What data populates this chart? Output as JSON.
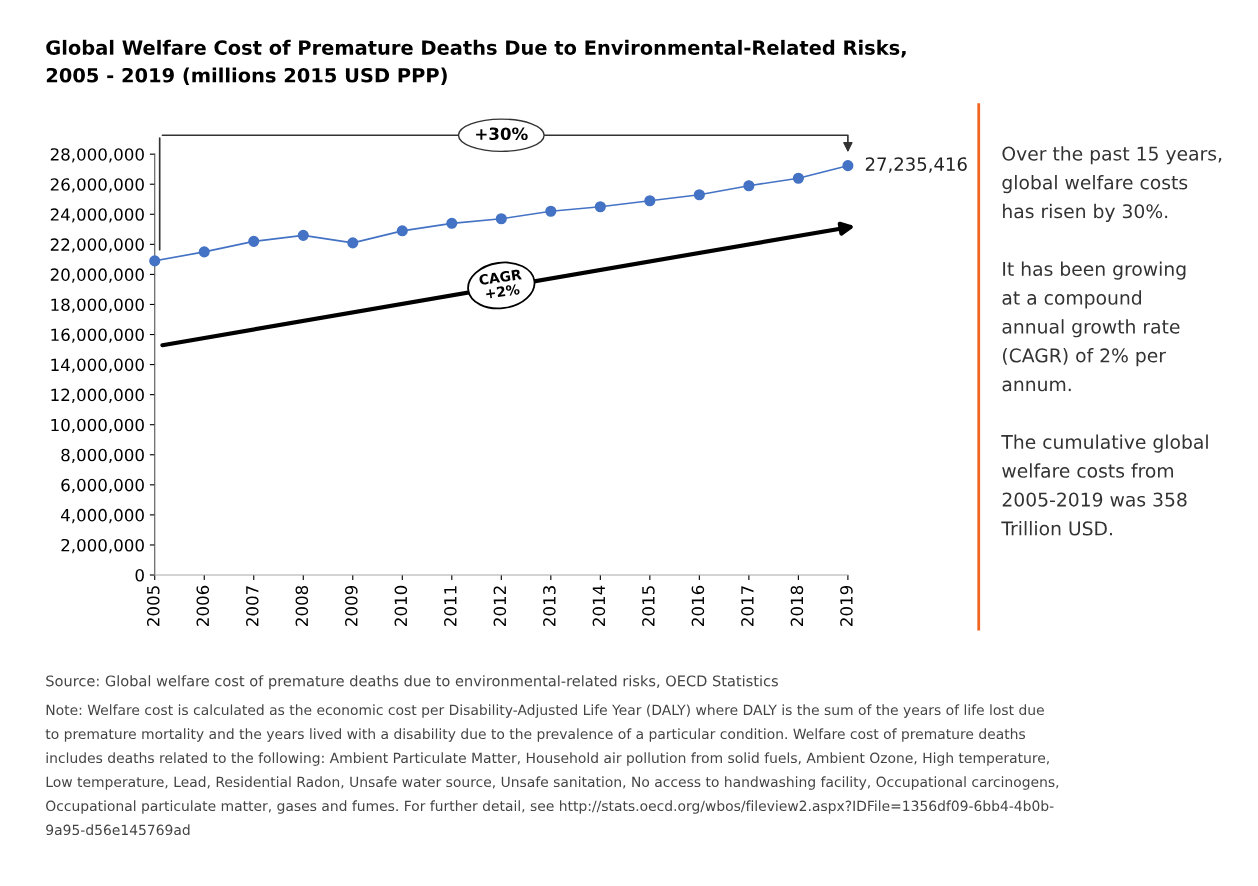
{
  "chart_data": {
    "type": "line",
    "title": "Global Welfare Cost of Premature Deaths Due to Environmental-Related Risks,\n2005 - 2019 (millions 2015 USD PPP)",
    "categories": [
      "2005",
      "2006",
      "2007",
      "2008",
      "2009",
      "2010",
      "2011",
      "2012",
      "2013",
      "2014",
      "2015",
      "2016",
      "2017",
      "2018",
      "2019"
    ],
    "series": [
      {
        "color": "#4472c4",
        "values": [
          20900000,
          21500000,
          22200000,
          22600000,
          22100000,
          22900000,
          23400000,
          23700000,
          24200000,
          24500000,
          24900000,
          25300000,
          25900000,
          26400000,
          27235416
        ],
        "value_labels": [
          null,
          null,
          null,
          null,
          null,
          null,
          null,
          null,
          null,
          null,
          null,
          null,
          null,
          null,
          "27,235,416"
        ]
      }
    ],
    "marker": "circle",
    "ylim": [
      0,
      28000000
    ],
    "yticks": [
      {
        "value": 0,
        "label": "0"
      },
      {
        "value": 2000000,
        "label": "2,000,000"
      },
      {
        "value": 4000000,
        "label": "4,000,000"
      },
      {
        "value": 6000000,
        "label": "6,000,000"
      },
      {
        "value": 8000000,
        "label": "8,000,000"
      },
      {
        "value": 10000000,
        "label": "10,000,000"
      },
      {
        "value": 12000000,
        "label": "12,000,000"
      },
      {
        "value": 14000000,
        "label": "14,000,000"
      },
      {
        "value": 16000000,
        "label": "16,000,000"
      },
      {
        "value": 18000000,
        "label": "18,000,000"
      },
      {
        "value": 20000000,
        "label": "20,000,000"
      },
      {
        "value": 22000000,
        "label": "22,000,000"
      },
      {
        "value": 24000000,
        "label": "24,000,000"
      },
      {
        "value": 26000000,
        "label": "26,000,000"
      },
      {
        "value": 28000000,
        "label": "28,000,000"
      }
    ],
    "grid": false,
    "annotations": [
      "+30%",
      "CAGR\n+2%",
      "Over the past 15 years,\nglobal welfare costs\nhas risen by 30%.\n\nIt has been growing\nat a compound\nannual growth rate\n(CAGR) of 2% per\nannum.\n\nThe cumulative global\nwelfare costs from\n2005-2019 was 358\nTrillion USD.",
      "Source: Global welfare cost of premature deaths due to environmental-related risks, OECD Statistics",
      "Note: Welfare cost is calculated as the economic cost per Disability-Adjusted Life Year (DALY) where DALY is the sum of the years of life lost due\nto premature mortality and the years lived with a disability due to the prevalence of a particular condition. Welfare cost of premature deaths\nincludes deaths related to the following: Ambient Particulate Matter, Household air pollution from solid fuels, Ambient Ozone, High temperature,\nLow temperature, Lead, Residential Radon, Unsafe water source, Unsafe sanitation, No access to handwashing facility, Occupational carcinogens,\nOccupational particulate matter, gases and fumes. For further detail, see http://stats.oecd.org/wbos/fileview2.aspx?IDFile=1356df09-6bb4-4b0b-\n9a95-d56e145769ad"
    ]
  }
}
